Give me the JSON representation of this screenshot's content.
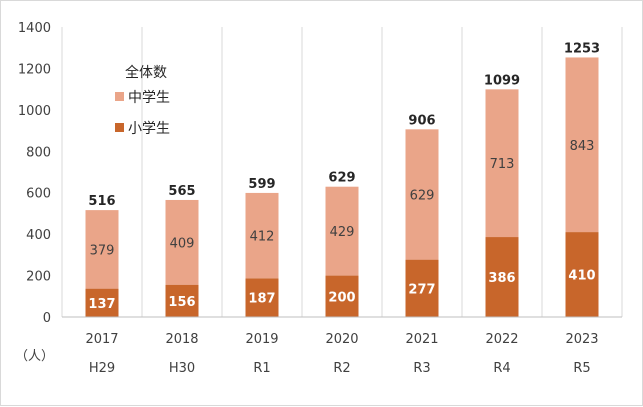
{
  "chart_data": {
    "type": "bar",
    "stacked": true,
    "categories": [
      "2017",
      "2018",
      "2019",
      "2020",
      "2021",
      "2022",
      "2023"
    ],
    "categories_secondary": [
      "H29",
      "H30",
      "R1",
      "R2",
      "R3",
      "R4",
      "R5"
    ],
    "series": [
      {
        "name": "小学生",
        "values": [
          137,
          156,
          187,
          200,
          277,
          386,
          410
        ],
        "color": "#c8662b"
      },
      {
        "name": "中学生",
        "values": [
          379,
          409,
          412,
          429,
          629,
          713,
          843
        ],
        "color": "#eaa589"
      }
    ],
    "totals": [
      516,
      565,
      599,
      629,
      906,
      1099,
      1253
    ],
    "ylim": [
      0,
      1400
    ],
    "yticks": [
      0,
      200,
      400,
      600,
      800,
      1000,
      1200,
      1400
    ],
    "ylabel": "（人）",
    "legend": {
      "title": "全体数",
      "position": "top-left"
    },
    "grid": {
      "vertical": true,
      "horizontal": false
    }
  }
}
